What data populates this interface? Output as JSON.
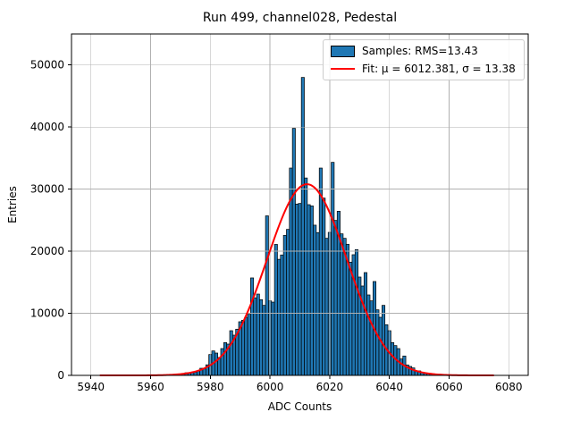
{
  "figure": {
    "title": "Run 499, channel028, Pedestal"
  },
  "chart_data": {
    "type": "bar",
    "subtype": "histogram-with-gaussian-fit",
    "title": "Run 499, channel028, Pedestal",
    "xlabel": "ADC Counts",
    "ylabel": "Entries",
    "xlim": [
      5933.5,
      6086.5
    ],
    "ylim": [
      0,
      55000
    ],
    "xticks": [
      5940,
      5960,
      5980,
      6000,
      6020,
      6040,
      6060,
      6080
    ],
    "yticks": [
      0,
      10000,
      20000,
      30000,
      40000,
      50000
    ],
    "grid": true,
    "grid_color": "#b0b0b0",
    "bar_color": "#1f77b4",
    "bar_edge_color": "#000000",
    "fit_color": "#ff0000",
    "bin_width": 1,
    "bins": [
      5969,
      5970,
      5971,
      5972,
      5973,
      5974,
      5975,
      5976,
      5977,
      5978,
      5979,
      5980,
      5981,
      5982,
      5983,
      5984,
      5985,
      5986,
      5987,
      5988,
      5989,
      5990,
      5991,
      5992,
      5993,
      5994,
      5995,
      5996,
      5997,
      5998,
      5999,
      6000,
      6001,
      6002,
      6003,
      6004,
      6005,
      6006,
      6007,
      6008,
      6009,
      6010,
      6011,
      6012,
      6013,
      6014,
      6015,
      6016,
      6017,
      6018,
      6019,
      6020,
      6021,
      6022,
      6023,
      6024,
      6025,
      6026,
      6027,
      6028,
      6029,
      6030,
      6031,
      6032,
      6033,
      6034,
      6035,
      6036,
      6037,
      6038,
      6039,
      6040,
      6041,
      6042,
      6043,
      6044,
      6045,
      6046,
      6047,
      6048,
      6049,
      6050,
      6051,
      6052,
      6053,
      6054,
      6055,
      6056,
      6057
    ],
    "counts": [
      60,
      120,
      200,
      420,
      430,
      450,
      520,
      700,
      1150,
      1050,
      1700,
      3360,
      3940,
      3600,
      2880,
      4320,
      5280,
      5040,
      7200,
      6480,
      7440,
      8640,
      8880,
      9360,
      9840,
      15700,
      12500,
      13100,
      12200,
      11280,
      25700,
      12000,
      11800,
      21100,
      18700,
      19400,
      22560,
      23520,
      33400,
      39800,
      27600,
      27700,
      48000,
      31800,
      27500,
      27300,
      24200,
      23000,
      33400,
      28560,
      22080,
      23040,
      34320,
      24960,
      26440,
      22800,
      22080,
      21120,
      18240,
      19440,
      20260,
      15840,
      14400,
      16560,
      12960,
      12000,
      15120,
      10560,
      9360,
      11280,
      8160,
      7200,
      5280,
      4800,
      4320,
      2640,
      3120,
      1680,
      1440,
      1200,
      720,
      720,
      480,
      380,
      300,
      240,
      180,
      120,
      80
    ],
    "fit": {
      "mu": 6012.381,
      "sigma": 13.38,
      "rms": 13.43,
      "amplitude": 30800,
      "x_start": 5943,
      "x_end": 6075
    },
    "legend": {
      "position": "upper right",
      "entries": [
        {
          "type": "patch",
          "label": "Samples: RMS=13.43",
          "color": "#1f77b4"
        },
        {
          "type": "line",
          "label": "Fit: μ = 6012.381, σ = 13.38",
          "color": "#ff0000"
        }
      ]
    }
  }
}
